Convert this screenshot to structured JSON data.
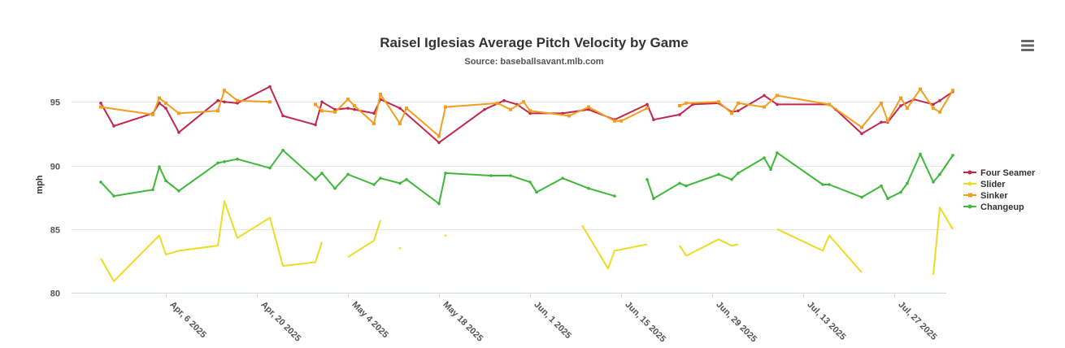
{
  "menu": {
    "icon": "hamburger-menu-icon"
  },
  "chart_data": {
    "type": "line",
    "title": "Raisel Iglesias Average Pitch Velocity by Game",
    "subtitle": "Source: baseballsavant.mlb.com",
    "xlabel": "",
    "ylabel": "mph",
    "ylim": [
      80,
      97
    ],
    "yticks": [
      80,
      85,
      90,
      95
    ],
    "xlim": [
      -4.5,
      130
    ],
    "xticks": [
      {
        "label": "Apr, 6 2025",
        "day": 10
      },
      {
        "label": "Apr, 20 2025",
        "day": 24
      },
      {
        "label": "May 4 2025",
        "day": 38
      },
      {
        "label": "May 18 2025",
        "day": 52
      },
      {
        "label": "Jun, 1 2025",
        "day": 66
      },
      {
        "label": "Jun, 15 2025",
        "day": 80
      },
      {
        "label": "Jun, 29 2025",
        "day": 94
      },
      {
        "label": "Jul, 13 2025",
        "day": 108
      },
      {
        "label": "Jul, 27 2025",
        "day": 122
      }
    ],
    "x_unit": "days since Mar 27 2025",
    "grid": true,
    "legend_position": "right",
    "series": [
      {
        "name": "Four Seamer",
        "color": "#c2274c",
        "points": [
          [
            0,
            94.9
          ],
          [
            2,
            93.1
          ],
          [
            8,
            94.1
          ],
          [
            9,
            94.9
          ],
          [
            10,
            94.5
          ],
          [
            12,
            92.6
          ],
          [
            18,
            95.1
          ],
          [
            19,
            95.0
          ],
          [
            21,
            94.9
          ],
          [
            26,
            96.2
          ],
          [
            28,
            93.9
          ],
          [
            33,
            93.2
          ],
          [
            34,
            95.0
          ],
          [
            36,
            94.4
          ],
          [
            38,
            94.5
          ],
          [
            39,
            94.4
          ],
          [
            42,
            94.1
          ],
          [
            43,
            95.2
          ],
          [
            46,
            94.5
          ],
          [
            52,
            91.8
          ],
          [
            59,
            94.4
          ],
          [
            62,
            95.1
          ],
          [
            64,
            94.8
          ],
          [
            66,
            94.1
          ],
          [
            71,
            94.1
          ],
          [
            75,
            94.4
          ],
          [
            79,
            93.6
          ],
          [
            84,
            94.8
          ],
          [
            85,
            93.6
          ],
          [
            89,
            94.0
          ],
          [
            91,
            94.8
          ],
          [
            95,
            94.9
          ],
          [
            97,
            94.2
          ],
          [
            98,
            94.3
          ],
          [
            102,
            95.5
          ],
          [
            104,
            94.8
          ],
          [
            112,
            94.8
          ],
          [
            113,
            94.4
          ],
          [
            117,
            92.5
          ],
          [
            120,
            93.4
          ],
          [
            121,
            93.4
          ],
          [
            123,
            94.7
          ],
          [
            125,
            95.2
          ],
          [
            128,
            94.8
          ],
          [
            129,
            95.1
          ],
          [
            131,
            95.8
          ]
        ]
      },
      {
        "name": "Slider",
        "color": "#ecdc22",
        "points": [
          [
            0,
            82.7
          ],
          [
            2,
            80.9
          ],
          [
            8,
            84.0
          ],
          [
            9,
            84.5
          ],
          [
            10,
            83.0
          ],
          [
            12,
            83.3
          ],
          [
            18,
            83.7
          ],
          [
            19,
            87.2
          ],
          [
            21,
            84.3
          ],
          [
            26,
            85.9
          ],
          [
            28,
            82.1
          ],
          [
            33,
            82.4
          ],
          [
            34,
            84.0
          ],
          [
            null,
            null
          ],
          [
            38,
            82.8
          ],
          [
            42,
            84.1
          ],
          [
            43,
            85.7
          ],
          [
            null,
            null
          ],
          [
            46,
            83.5
          ],
          [
            null,
            null
          ],
          [
            53,
            84.5
          ],
          [
            null,
            null
          ],
          [
            74,
            85.3
          ],
          [
            78,
            81.9
          ],
          [
            79,
            83.3
          ],
          [
            84,
            83.8
          ],
          [
            null,
            null
          ],
          [
            89,
            83.7
          ],
          [
            90,
            82.9
          ],
          [
            95,
            84.2
          ],
          [
            97,
            83.7
          ],
          [
            98,
            83.8
          ],
          [
            null,
            null
          ],
          [
            104,
            85.0
          ],
          [
            111,
            83.3
          ],
          [
            112,
            84.5
          ],
          [
            117,
            81.6
          ],
          [
            null,
            null
          ],
          [
            128,
            81.4
          ],
          [
            129,
            86.7
          ],
          [
            131,
            85.0
          ]
        ]
      },
      {
        "name": "Sinker",
        "color": "#f49d1f",
        "points": [
          [
            0,
            94.6
          ],
          [
            8,
            94.0
          ],
          [
            9,
            95.3
          ],
          [
            10,
            94.9
          ],
          [
            12,
            94.1
          ],
          [
            18,
            94.3
          ],
          [
            19,
            95.9
          ],
          [
            21,
            95.1
          ],
          [
            26,
            95.0
          ],
          [
            null,
            null
          ],
          [
            33,
            94.8
          ],
          [
            34,
            94.3
          ],
          [
            36,
            94.2
          ],
          [
            38,
            95.2
          ],
          [
            39,
            94.7
          ],
          [
            42,
            93.3
          ],
          [
            43,
            95.6
          ],
          [
            46,
            93.3
          ],
          [
            47,
            94.5
          ],
          [
            52,
            92.3
          ],
          [
            53,
            94.6
          ],
          [
            61,
            94.9
          ],
          [
            63,
            94.4
          ],
          [
            65,
            95.0
          ],
          [
            66,
            94.3
          ],
          [
            72,
            93.9
          ],
          [
            75,
            94.6
          ],
          [
            79,
            93.5
          ],
          [
            80,
            93.5
          ],
          [
            84,
            94.5
          ],
          [
            null,
            null
          ],
          [
            89,
            94.7
          ],
          [
            90,
            94.9
          ],
          [
            95,
            95.0
          ],
          [
            97,
            94.1
          ],
          [
            98,
            94.9
          ],
          [
            102,
            94.6
          ],
          [
            104,
            95.5
          ],
          [
            112,
            94.8
          ],
          [
            117,
            93.0
          ],
          [
            120,
            94.9
          ],
          [
            121,
            93.5
          ],
          [
            123,
            95.3
          ],
          [
            124,
            94.5
          ],
          [
            126,
            96.0
          ],
          [
            128,
            94.5
          ],
          [
            129,
            94.2
          ],
          [
            131,
            95.9
          ]
        ]
      },
      {
        "name": "Changeup",
        "color": "#3fb83a",
        "points": [
          [
            0,
            88.7
          ],
          [
            2,
            87.6
          ],
          [
            8,
            88.1
          ],
          [
            9,
            89.9
          ],
          [
            10,
            88.8
          ],
          [
            12,
            88.0
          ],
          [
            18,
            90.2
          ],
          [
            19,
            90.3
          ],
          [
            21,
            90.5
          ],
          [
            26,
            89.8
          ],
          [
            28,
            91.2
          ],
          [
            33,
            88.9
          ],
          [
            34,
            89.4
          ],
          [
            36,
            88.2
          ],
          [
            38,
            89.3
          ],
          [
            42,
            88.5
          ],
          [
            43,
            89.0
          ],
          [
            46,
            88.6
          ],
          [
            47,
            88.9
          ],
          [
            52,
            87.0
          ],
          [
            53,
            89.4
          ],
          [
            60,
            89.2
          ],
          [
            63,
            89.2
          ],
          [
            66,
            88.7
          ],
          [
            67,
            87.9
          ],
          [
            71,
            89.0
          ],
          [
            75,
            88.2
          ],
          [
            79,
            87.6
          ],
          [
            null,
            null
          ],
          [
            84,
            88.9
          ],
          [
            85,
            87.4
          ],
          [
            89,
            88.6
          ],
          [
            90,
            88.4
          ],
          [
            95,
            89.3
          ],
          [
            97,
            88.9
          ],
          [
            98,
            89.4
          ],
          [
            102,
            90.6
          ],
          [
            103,
            89.7
          ],
          [
            104,
            91.0
          ],
          [
            111,
            88.5
          ],
          [
            112,
            88.5
          ],
          [
            117,
            87.5
          ],
          [
            120,
            88.4
          ],
          [
            121,
            87.4
          ],
          [
            123,
            87.9
          ],
          [
            124,
            88.6
          ],
          [
            126,
            90.9
          ],
          [
            128,
            88.7
          ],
          [
            129,
            89.3
          ],
          [
            131,
            90.8
          ]
        ]
      }
    ]
  }
}
